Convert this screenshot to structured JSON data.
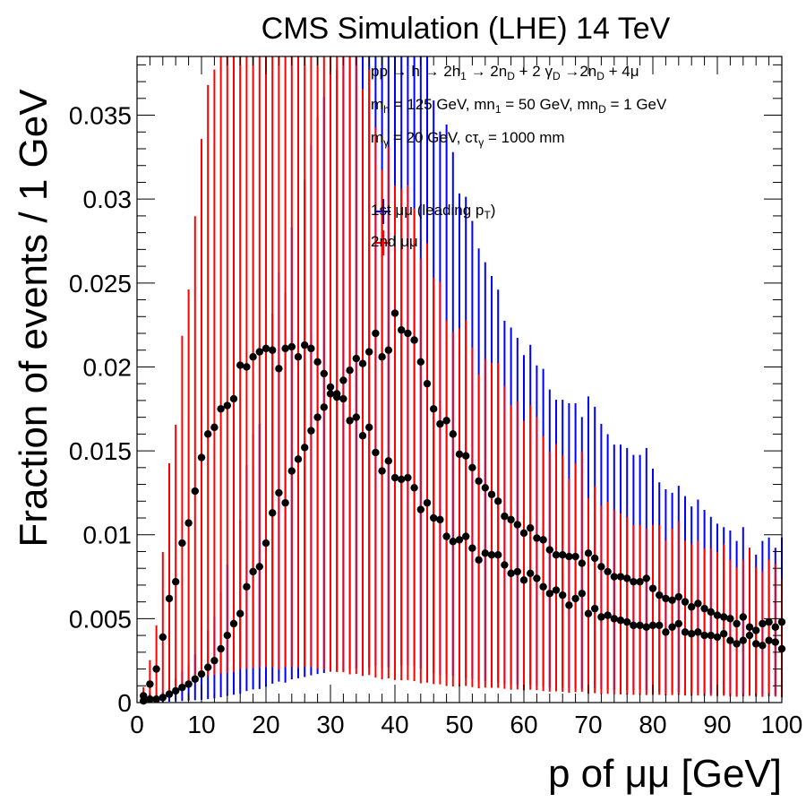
{
  "chart_data": {
    "type": "scatter",
    "title": "CMS Simulation (LHE) 14 TeV",
    "xlabel": "p of μμ [GeV]",
    "ylabel": "Fraction of events / 1 GeV",
    "xlim": [
      0,
      100
    ],
    "ylim": [
      0,
      0.0385
    ],
    "x_ticks": [
      "0",
      "10",
      "20",
      "30",
      "40",
      "50",
      "60",
      "70",
      "80",
      "90",
      "100"
    ],
    "y_ticks": [
      "0",
      "0.005",
      "0.01",
      "0.015",
      "0.02",
      "0.025",
      "0.03",
      "0.035"
    ],
    "annotations": [
      {
        "parts": [
          [
            "pp → h → 2h",
            ""
          ],
          [
            "1",
            "sub"
          ],
          [
            " → 2n",
            ""
          ],
          [
            "D",
            "sub"
          ],
          [
            " + 2 γ",
            ""
          ],
          [
            "D",
            "sub"
          ],
          [
            " →2n",
            ""
          ],
          [
            "D",
            "sub"
          ],
          [
            " + 4μ",
            ""
          ]
        ]
      },
      {
        "parts": [
          [
            "m",
            ""
          ],
          [
            "h",
            "sub"
          ],
          [
            " = 125 GeV, m",
            ""
          ],
          [
            "n",
            ""
          ],
          [
            "1",
            "sub"
          ],
          [
            " = 50 GeV, m",
            ""
          ],
          [
            "n",
            ""
          ],
          [
            "D",
            "sub"
          ],
          [
            " = 1 GeV",
            ""
          ]
        ]
      },
      {
        "parts": [
          [
            "m",
            ""
          ],
          [
            "γ",
            "sub"
          ],
          [
            " = 20 GeV, cτ",
            ""
          ],
          [
            "γ",
            "sub"
          ],
          [
            " = 1000 mm",
            ""
          ]
        ]
      }
    ],
    "legend_placement": "top-center",
    "colors": {
      "series1": "#0000ff",
      "series2": "#ff0000",
      "points": "#000000"
    },
    "series": [
      {
        "name": "1st μμ (leading pT)",
        "legend_parts": [
          [
            "1st μμ (leading p",
            ""
          ],
          [
            "T",
            "sub"
          ],
          [
            ")",
            ""
          ]
        ],
        "color": "#0000ff",
        "x": [
          1,
          2,
          3,
          4,
          5,
          6,
          7,
          8,
          9,
          10,
          11,
          12,
          13,
          14,
          15,
          16,
          17,
          18,
          19,
          20,
          21,
          22,
          23,
          24,
          25,
          26,
          27,
          28,
          29,
          30,
          31,
          32,
          33,
          34,
          35,
          36,
          37,
          38,
          39,
          40,
          41,
          42,
          43,
          44,
          45,
          46,
          47,
          48,
          49,
          50,
          51,
          52,
          53,
          54,
          55,
          56,
          57,
          58,
          59,
          60,
          61,
          62,
          63,
          64,
          65,
          66,
          67,
          68,
          69,
          70,
          71,
          72,
          73,
          74,
          75,
          76,
          77,
          78,
          79,
          80,
          81,
          82,
          83,
          84,
          85,
          86,
          87,
          88,
          89,
          90,
          91,
          92,
          93,
          94,
          95,
          96,
          97,
          98,
          99,
          100
        ],
        "values": [
          0.0001,
          0.0002,
          0.0002,
          0.0003,
          0.0005,
          0.0007,
          0.0009,
          0.0011,
          0.0014,
          0.0017,
          0.0021,
          0.0025,
          0.0032,
          0.004,
          0.0047,
          0.0053,
          0.0069,
          0.0078,
          0.0081,
          0.0095,
          0.0113,
          0.0125,
          0.0119,
          0.0138,
          0.0145,
          0.0152,
          0.0162,
          0.017,
          0.0176,
          0.0184,
          0.0184,
          0.0192,
          0.0198,
          0.0205,
          0.0202,
          0.0209,
          0.022,
          0.0206,
          0.021,
          0.0232,
          0.0222,
          0.022,
          0.0216,
          0.0203,
          0.019,
          0.0175,
          0.0166,
          0.0168,
          0.016,
          0.0148,
          0.0147,
          0.014,
          0.0132,
          0.0128,
          0.0124,
          0.012,
          0.0111,
          0.0109,
          0.0106,
          0.0101,
          0.0104,
          0.0098,
          0.0097,
          0.0091,
          0.0088,
          0.0088,
          0.0087,
          0.0087,
          0.0083,
          0.0089,
          0.0086,
          0.0081,
          0.0078,
          0.0075,
          0.0075,
          0.0074,
          0.0072,
          0.0072,
          0.0074,
          0.0068,
          0.0064,
          0.0062,
          0.0061,
          0.0063,
          0.006,
          0.0057,
          0.0059,
          0.0056,
          0.0054,
          0.0052,
          0.0051,
          0.005,
          0.0047,
          0.0051,
          0.0045,
          0.0043,
          0.0047,
          0.0048,
          0.0045,
          0.0048
        ]
      },
      {
        "name": "2nd μμ",
        "legend_parts": [
          [
            "2nd μμ",
            ""
          ]
        ],
        "color": "#ff0000",
        "x": [
          1,
          2,
          3,
          4,
          5,
          6,
          7,
          8,
          9,
          10,
          11,
          12,
          13,
          14,
          15,
          16,
          17,
          18,
          19,
          20,
          21,
          22,
          23,
          24,
          25,
          26,
          27,
          28,
          29,
          30,
          31,
          32,
          33,
          34,
          35,
          36,
          37,
          38,
          39,
          40,
          41,
          42,
          43,
          44,
          45,
          46,
          47,
          48,
          49,
          50,
          51,
          52,
          53,
          54,
          55,
          56,
          57,
          58,
          59,
          60,
          61,
          62,
          63,
          64,
          65,
          66,
          67,
          68,
          69,
          70,
          71,
          72,
          73,
          74,
          75,
          76,
          77,
          78,
          79,
          80,
          81,
          82,
          83,
          84,
          85,
          86,
          87,
          88,
          89,
          90,
          91,
          92,
          93,
          94,
          95,
          96,
          97,
          98,
          99,
          100
        ],
        "values": [
          0.0004,
          0.0011,
          0.002,
          0.0039,
          0.0062,
          0.0072,
          0.0095,
          0.0107,
          0.0126,
          0.0146,
          0.016,
          0.0164,
          0.0175,
          0.0177,
          0.0181,
          0.0201,
          0.02,
          0.0206,
          0.0209,
          0.0211,
          0.021,
          0.0199,
          0.0211,
          0.0212,
          0.0206,
          0.0213,
          0.0211,
          0.0203,
          0.0196,
          0.0188,
          0.0182,
          0.0181,
          0.0168,
          0.017,
          0.0159,
          0.0164,
          0.0149,
          0.0138,
          0.0144,
          0.0134,
          0.0133,
          0.0134,
          0.0128,
          0.0115,
          0.0119,
          0.011,
          0.0109,
          0.0099,
          0.0096,
          0.0097,
          0.0099,
          0.0092,
          0.0085,
          0.0089,
          0.0088,
          0.0088,
          0.0082,
          0.0077,
          0.0078,
          0.0073,
          0.0077,
          0.0074,
          0.0069,
          0.0065,
          0.0067,
          0.0064,
          0.0058,
          0.0062,
          0.0065,
          0.0053,
          0.0056,
          0.0051,
          0.0052,
          0.005,
          0.0049,
          0.0048,
          0.0046,
          0.0046,
          0.0045,
          0.0046,
          0.0046,
          0.0042,
          0.0045,
          0.0047,
          0.0042,
          0.0041,
          0.0042,
          0.004,
          0.004,
          0.0039,
          0.0041,
          0.0037,
          0.0035,
          0.0037,
          0.004,
          0.0035,
          0.0034,
          0.0037,
          0.0036,
          0.0032
        ]
      }
    ],
    "error_bar_height_factor": 0.0
  }
}
